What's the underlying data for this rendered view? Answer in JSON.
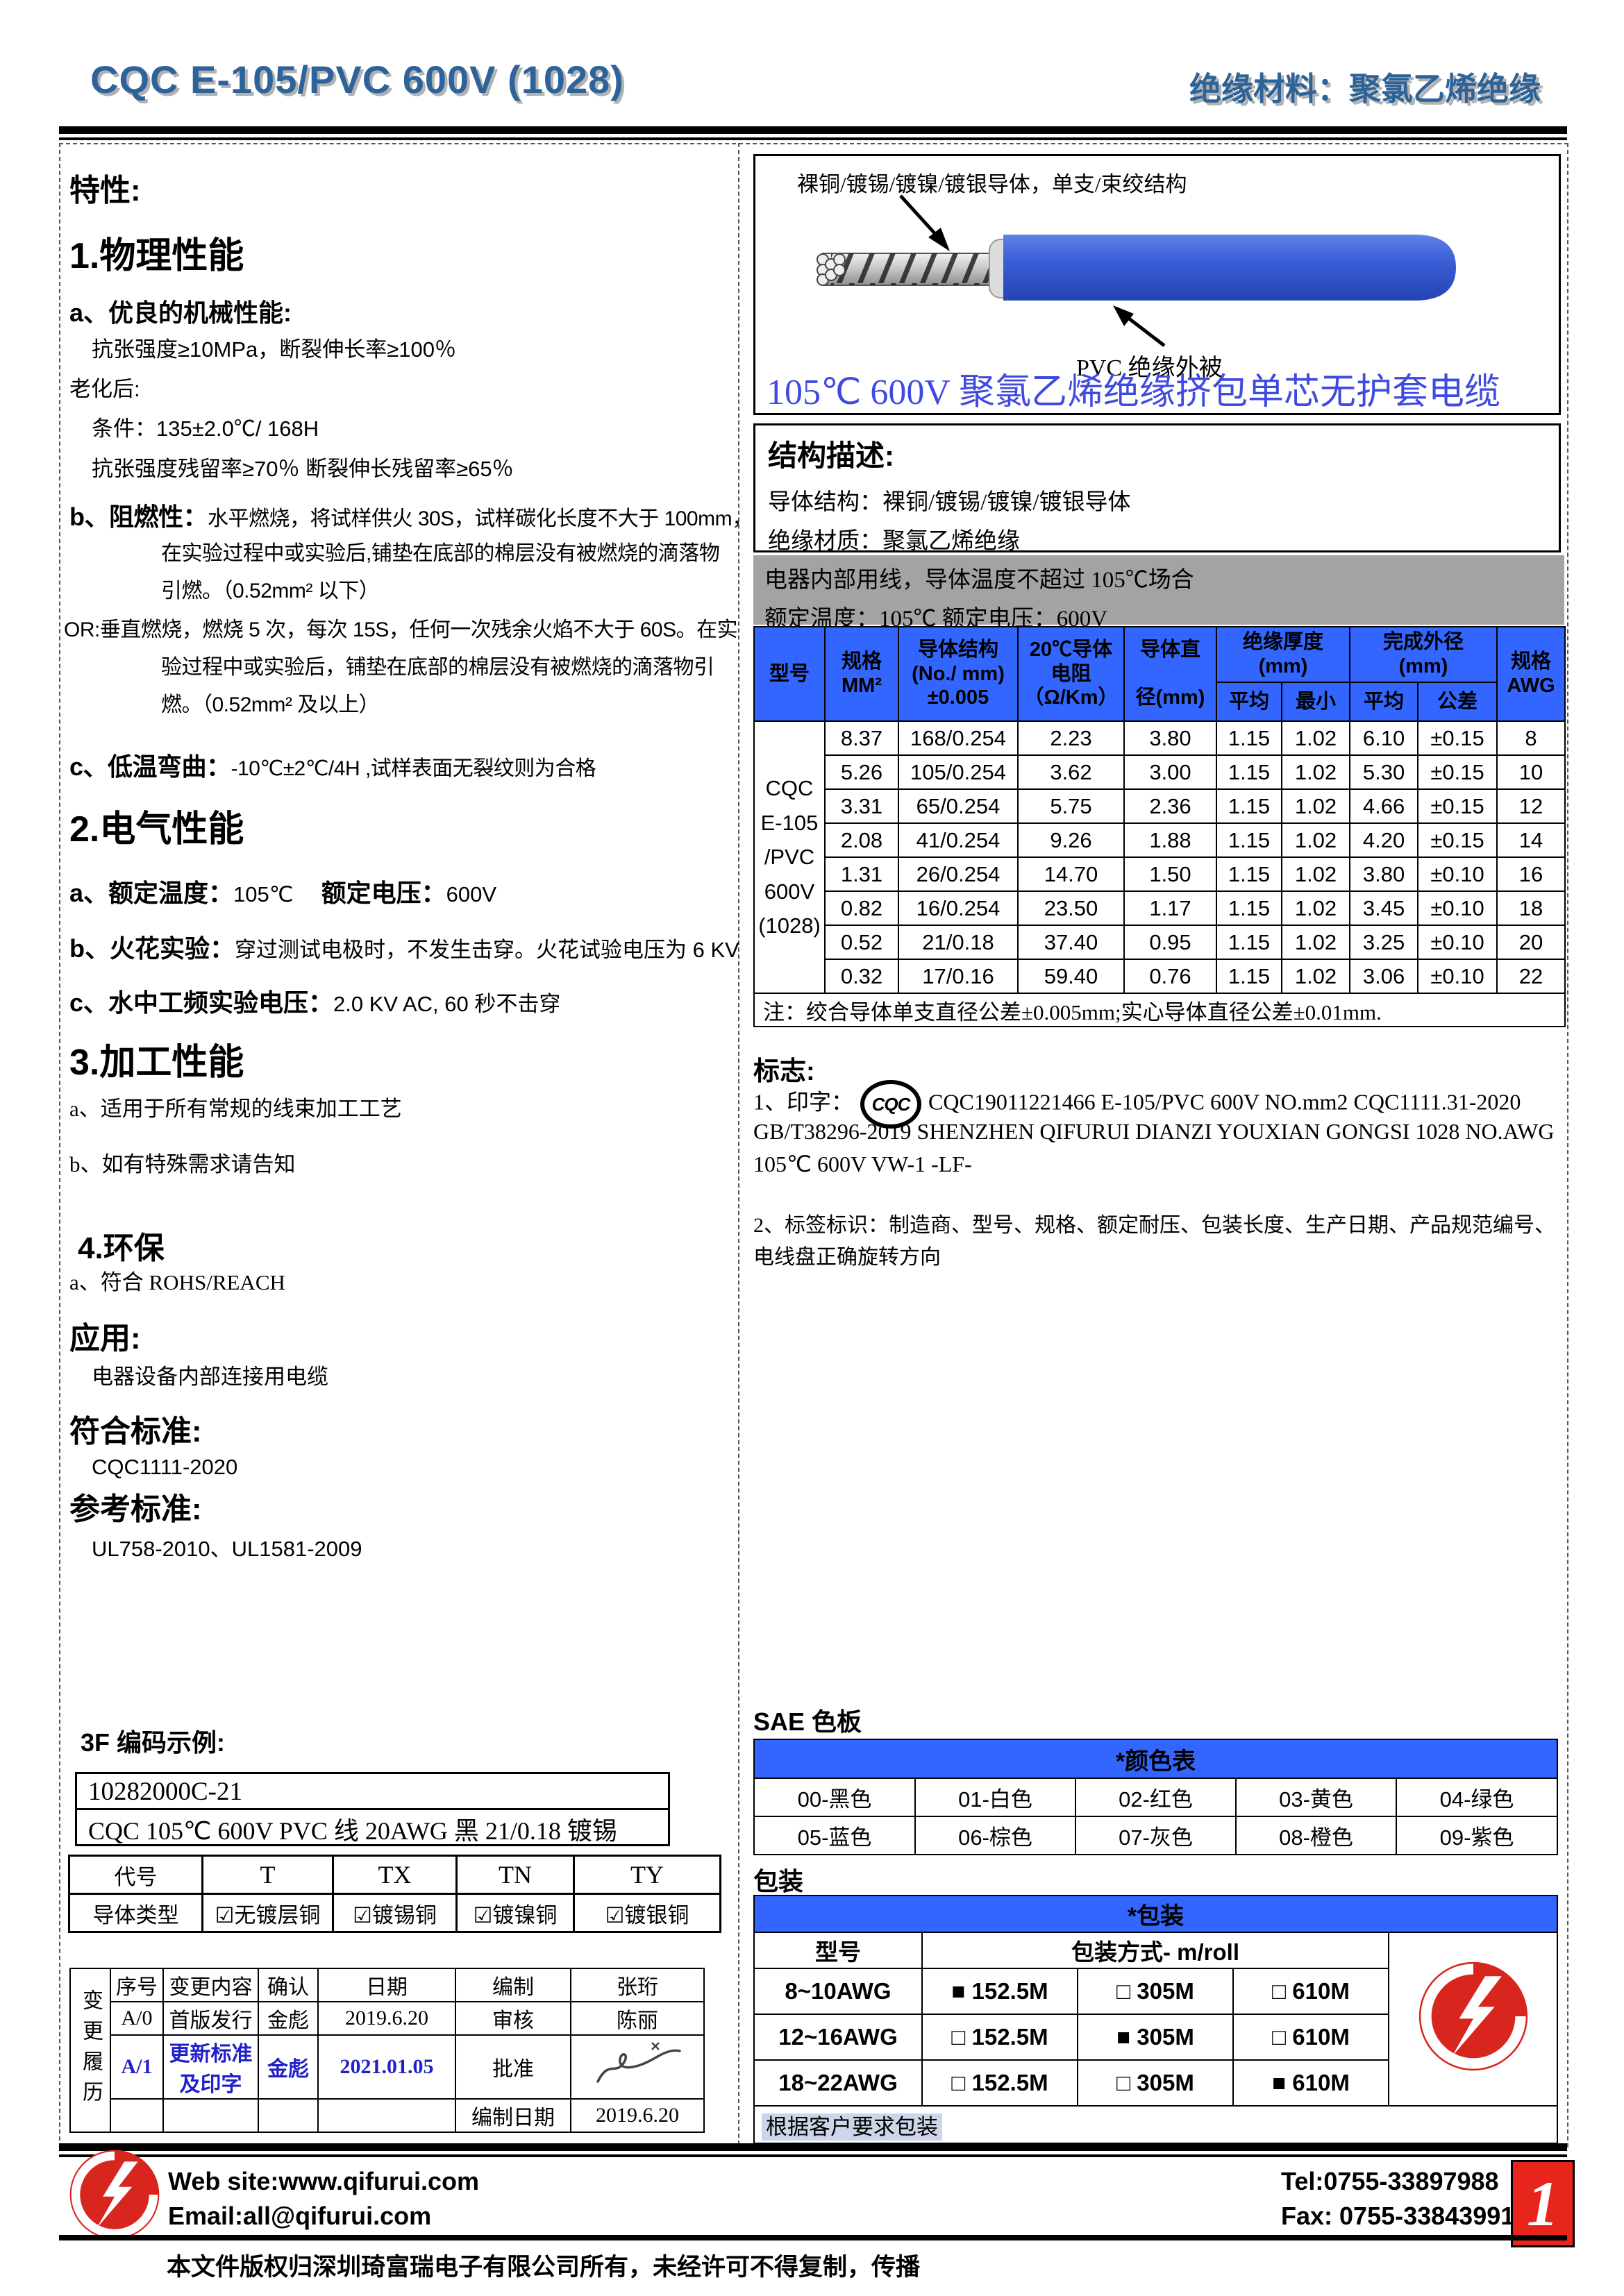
{
  "colors": {
    "accent_blue": "#3366fe",
    "title_blue": "#2e6399",
    "caption_blue": "#3f4be0",
    "brand_red": "#d8251d",
    "gray_note": "#a3a3a3",
    "revision_blue": "#2020c8"
  },
  "header": {
    "title": "CQC E-105/PVC 600V (1028)",
    "subtitle": "绝缘材料：聚氯乙烯绝缘"
  },
  "left": {
    "traits_title": "特性:",
    "s1_title": "1.物理性能",
    "s1a_bold": "a、优良的机械性能:",
    "s1a_line": "抗张强度≥10MPa，断裂伸长率≥100％",
    "aging": "老化后:",
    "cond": "条件：135±2.0℃/ 168H",
    "resid": "抗张强度残留率≥70％ 断裂伸长残留率≥65％",
    "s1b_bold": "b、阻燃性：",
    "s1b_l1": "水平燃烧，将试样供火 30S，试样碳化长度不大于 100mm，",
    "s1b_l2": "在实验过程中或实验后,铺垫在底部的棉层没有被燃烧的滴落物",
    "s1b_l3": "引燃。（0.52mm² 以下）",
    "s1b_l4": "OR:垂直燃烧，燃烧 5 次，每次 15S，任何一次残余火焰不大于 60S。在实",
    "s1b_l5": "验过程中或实验后，铺垫在底部的棉层没有被燃烧的滴落物引",
    "s1b_l6": "燃。（0.52mm² 及以上）",
    "s1c_bold": "c、低温弯曲：",
    "s1c_rest": "-10℃±2℃/4H ,试样表面无裂纹则为合格",
    "s2_title": "2.电气性能",
    "s2a_b1": "a、额定温度：",
    "s2a_v1": "105℃",
    "s2a_b2": "额定电压：",
    "s2a_v2": "600V",
    "s2b_bold": "b、火花实验：",
    "s2b_rest": "穿过测试电极时，不发生击穿。火花试验电压为 6 KV",
    "s2c_bold": "c、水中工频实验电压：",
    "s2c_rest": "2.0 KV AC, 60 秒不击穿",
    "s3_title": "3.加工性能",
    "s3a": "a、适用于所有常规的线束加工工艺",
    "s3b": "b、如有特殊需求请告知",
    "s4_title": "4.环保",
    "s4a": "a、符合 ROHS/REACH",
    "app_title": "应用:",
    "app_line": "电器设备内部连接用电缆",
    "std_title": "符合标准:",
    "std_line": "CQC1111-2020",
    "ref_title": "参考标准:",
    "ref_line": "UL758-2010、UL1581-2009",
    "code_title": "3F 编码示例:",
    "code_box1": "10282000C-21",
    "code_box2": "CQC 105℃  600V PVC 线    20AWG  黑  21/0.18 镀锡",
    "code_table": {
      "h0": "代号",
      "h1": "T",
      "h2": "TX",
      "h3": "TN",
      "h4": "TY",
      "r0": "导体类型",
      "c1": "☑无镀层铜",
      "c2": "☑镀锡铜",
      "c3": "☑镀镍铜",
      "c4": "☑镀银铜"
    },
    "revision": {
      "side_label": "变更履历",
      "rows": [
        [
          "序号",
          "变更内容",
          "确认",
          "日期",
          "编制",
          "张珩"
        ],
        [
          "A/0",
          "首版发行",
          "金彪",
          "2019.6.20",
          "审核",
          "陈丽"
        ],
        [
          "A/1",
          "更新标准及印字",
          "金彪",
          "2021.01.05",
          "批准",
          ""
        ],
        [
          "",
          "",
          "",
          "",
          "编制日期",
          "2019.6.20"
        ]
      ]
    }
  },
  "right": {
    "cable": {
      "label_top": "裸铜/镀锡/镀镍/镀银导体，单支/束绞结构",
      "label_bottom": "PVC 绝缘外被",
      "caption": "105℃  600V 聚氯乙烯绝缘挤包单芯无护套电缆"
    },
    "structure": {
      "title": "结构描述:",
      "line1": "导体结构：裸铜/镀锡/镀镍/镀银导体",
      "line2": "绝缘材质：聚氯乙烯绝缘"
    },
    "gray_note": {
      "line1": "电器内部用线，导体温度不超过 105℃场合",
      "line2": "额定温度：105℃  额定电压：600V"
    },
    "spec_table": {
      "model_lines": "CQC\nE-105\n/PVC\n600V\n(1028)",
      "h_model": "型号",
      "h_spec": "规格\nMM²",
      "h_structure": "导体结构\n(No./ mm)\n±0.005",
      "h_res": "20℃导体\n电阻\n（Ω/Km）",
      "h_dia": "导体直\n\n径(mm)",
      "h_ins": "绝缘厚度\n(mm)",
      "h_od": "完成外径\n(mm)",
      "h_avg1": "平均",
      "h_min": "最小",
      "h_avg2": "平均",
      "h_tol": "公差",
      "h_awg": "规格\nAWG",
      "rows": [
        [
          "8.37",
          "168/0.254",
          "2.23",
          "3.80",
          "1.15",
          "1.02",
          "6.10",
          "±0.15",
          "8"
        ],
        [
          "5.26",
          "105/0.254",
          "3.62",
          "3.00",
          "1.15",
          "1.02",
          "5.30",
          "±0.15",
          "10"
        ],
        [
          "3.31",
          "65/0.254",
          "5.75",
          "2.36",
          "1.15",
          "1.02",
          "4.66",
          "±0.15",
          "12"
        ],
        [
          "2.08",
          "41/0.254",
          "9.26",
          "1.88",
          "1.15",
          "1.02",
          "4.20",
          "±0.15",
          "14"
        ],
        [
          "1.31",
          "26/0.254",
          "14.70",
          "1.50",
          "1.15",
          "1.02",
          "3.80",
          "±0.10",
          "16"
        ],
        [
          "0.82",
          "16/0.254",
          "23.50",
          "1.17",
          "1.15",
          "1.02",
          "3.45",
          "±0.10",
          "18"
        ],
        [
          "0.52",
          "21/0.18",
          "37.40",
          "0.95",
          "1.15",
          "1.02",
          "3.25",
          "±0.10",
          "20"
        ],
        [
          "0.32",
          "17/0.16",
          "59.40",
          "0.76",
          "1.15",
          "1.02",
          "3.06",
          "±0.10",
          "22"
        ]
      ],
      "note": "注：绞合导体单支直径公差±0.005mm;实心导体直径公差±0.01mm."
    },
    "marking": {
      "title": "标志:",
      "l1_prefix": "1、印字：",
      "l1_badge": "CQC",
      "l1_rest": "CQC19011221466  E-105/PVC  600V  NO.mm2  CQC1111.31-2020",
      "l2": "GB/T38296-2019 SHENZHEN QIFURUI DIANZI YOUXIAN GONGSI      1028 NO.AWG",
      "l3": "105℃  600V VW-1 -LF-",
      "l4": "2、标签标识：制造商、型号、规格、额定耐压、包装长度、生产日期、产品规范编号、",
      "l5": "电线盘正确旋转方向"
    },
    "sae": {
      "title": "SAE 色板",
      "header": "*颜色表",
      "rows": [
        [
          "00-黑色",
          "01-白色",
          "02-红色",
          "03-黄色",
          "04-绿色"
        ],
        [
          "05-蓝色",
          "06-棕色",
          "07-灰色",
          "08-橙色",
          "09-紫色"
        ]
      ]
    },
    "packing": {
      "title": "包装",
      "header": "*包装",
      "col1": "型号",
      "col2": "包装方式- m/roll",
      "rows": [
        [
          "8~10AWG",
          "■ 152.5M",
          "□ 305M",
          "□ 610M"
        ],
        [
          "12~16AWG",
          "□ 152.5M",
          "■ 305M",
          "□ 610M"
        ],
        [
          "18~22AWG",
          "□ 152.5M",
          "□ 305M",
          "■ 610M"
        ]
      ],
      "note": "根据客户要求包装"
    }
  },
  "footer": {
    "website": "Web site:www.qifurui.com",
    "email": "Email:all@qifurui.com",
    "tel": "Tel:0755-33897988",
    "fax": "Fax: 0755-33843991-3",
    "copyright": "本文件版权归深圳琦富瑞电子有限公司所有，未经许可不得复制，传播",
    "page": "1"
  }
}
